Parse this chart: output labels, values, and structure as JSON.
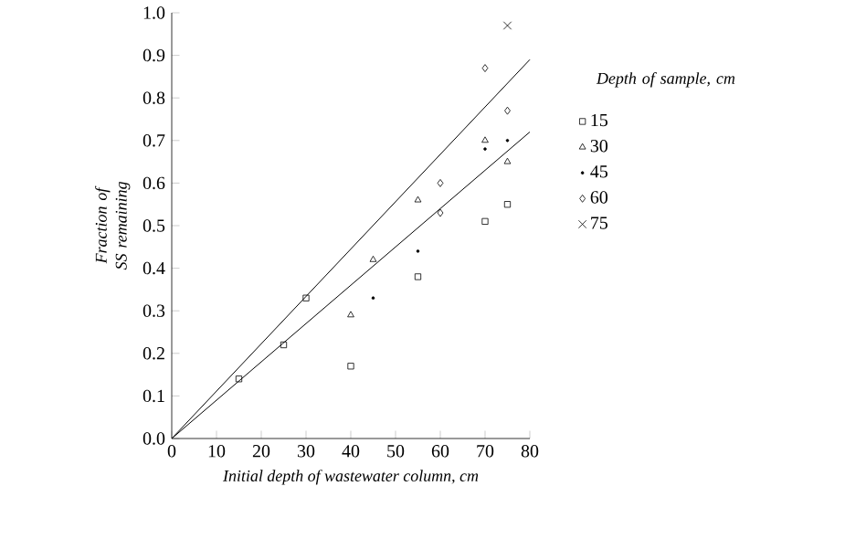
{
  "chart_data": {
    "type": "scatter",
    "xlabel": "Initial depth of wastewater column, cm",
    "ylabel": "Fraction of SS remaining",
    "legend_title": "Depth of sample, cm",
    "legend": "right",
    "xlim": [
      0,
      80
    ],
    "ylim": [
      0,
      1.0
    ],
    "xticks": [
      0,
      10,
      20,
      30,
      40,
      50,
      60,
      70,
      80
    ],
    "yticks": [
      {
        "value": 0,
        "label": "0.0"
      },
      {
        "value": 0.1,
        "label": "0.1"
      },
      {
        "value": 0.2,
        "label": "0.2"
      },
      {
        "value": 0.3,
        "label": "0.3"
      },
      {
        "value": 0.4,
        "label": "0.4"
      },
      {
        "value": 0.5,
        "label": "0.5"
      },
      {
        "value": 0.6,
        "label": "0.6"
      },
      {
        "value": 0.7,
        "label": "0.7"
      },
      {
        "value": 0.8,
        "label": "0.8"
      },
      {
        "value": 0.9,
        "label": "0.9"
      },
      {
        "value": 1.0,
        "label": "1.0"
      }
    ],
    "grid": false,
    "series": [
      {
        "name": "15",
        "color": "#000000",
        "marker": "square",
        "x": [
          15,
          25,
          30,
          40,
          55,
          70,
          75
        ],
        "values": [
          0.14,
          0.22,
          0.33,
          0.17,
          0.38,
          0.51,
          0.55
        ]
      },
      {
        "name": "30",
        "color": "#000000",
        "marker": "triangle",
        "x": [
          40,
          45,
          55,
          70,
          75
        ],
        "values": [
          0.29,
          0.42,
          0.56,
          0.7,
          0.65
        ]
      },
      {
        "name": "45",
        "color": "#000000",
        "marker": "circle",
        "x": [
          45,
          55,
          70,
          75
        ],
        "values": [
          0.33,
          0.44,
          0.68,
          0.7
        ]
      },
      {
        "name": "60",
        "color": "#000000",
        "marker": "diamond",
        "x": [
          60,
          60,
          70,
          75
        ],
        "values": [
          0.53,
          0.6,
          0.87,
          0.77
        ]
      },
      {
        "name": "75",
        "color": "#000000",
        "marker": "cross",
        "x": [
          75
        ],
        "values": [
          0.97
        ]
      },
      {
        "type": "line",
        "color": "#000000",
        "marker": "none",
        "x": [
          0,
          80
        ],
        "values": [
          0,
          0.89
        ]
      },
      {
        "type": "line",
        "color": "#000000",
        "marker": "none",
        "x": [
          0,
          80
        ],
        "values": [
          0,
          0.72
        ]
      }
    ]
  }
}
